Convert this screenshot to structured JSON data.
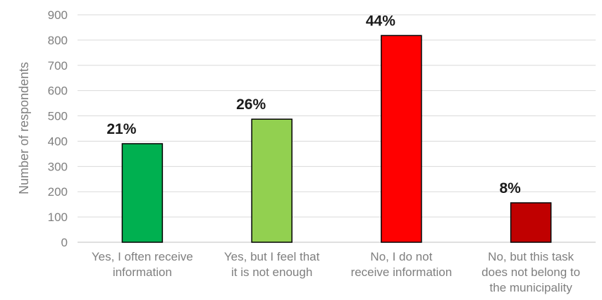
{
  "chart_data": {
    "type": "bar",
    "title": "",
    "xlabel": "",
    "ylabel": "Number of respondents",
    "ylim": [
      0,
      900
    ],
    "yticks": [
      0,
      100,
      200,
      300,
      400,
      500,
      600,
      700,
      800,
      900
    ],
    "grid": true,
    "legend": "none",
    "categories": [
      [
        "Yes, I often receive",
        "information"
      ],
      [
        "Yes, but I feel that",
        "it is not enough"
      ],
      [
        "No, I do not",
        "receive information"
      ],
      [
        "No, but this task",
        "does not belong to",
        "the municipality"
      ]
    ],
    "values": [
      390,
      487,
      818,
      156
    ],
    "data_labels": [
      "21%",
      "26%",
      "44%",
      "8%"
    ],
    "colors": [
      "#00b050",
      "#92d050",
      "#ff0000",
      "#c00000"
    ]
  }
}
